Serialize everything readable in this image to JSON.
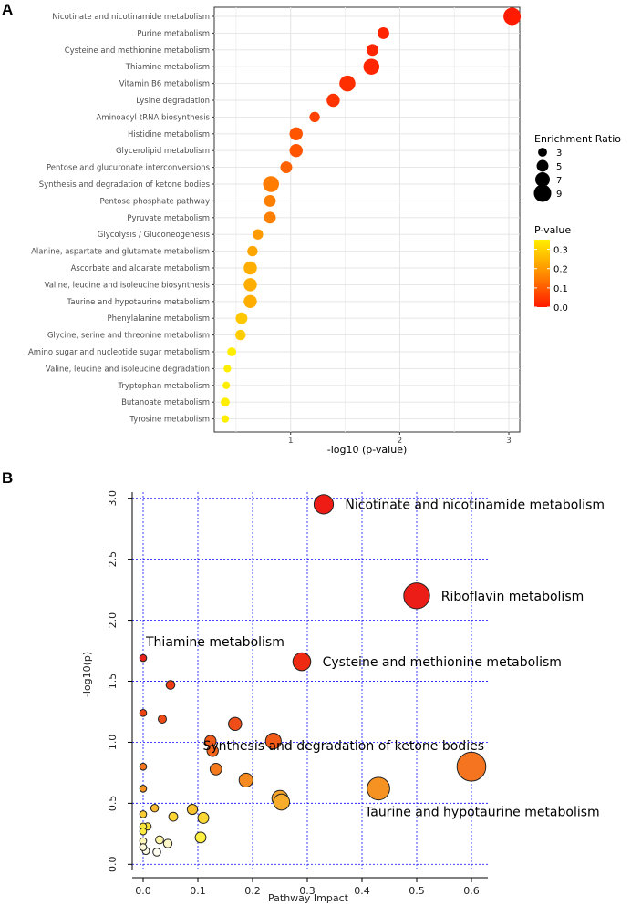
{
  "chart_data": [
    {
      "panel": "A",
      "type": "scatter",
      "title": "",
      "xlabel": "-log10 (p-value)",
      "ylabel": "",
      "xlim": [
        0.3,
        3.1
      ],
      "xticks": [
        1,
        2,
        3
      ],
      "grid": true,
      "categories": [
        "Nicotinate and nicotinamide metabolism",
        "Purine metabolism",
        "Cysteine and methionine metabolism",
        "Thiamine metabolism",
        "Vitamin B6 metabolism",
        "Lysine degradation",
        "Aminoacyl-tRNA biosynthesis",
        "Histidine metabolism",
        "Glycerolipid metabolism",
        "Pentose and glucuronate interconversions",
        "Synthesis and degradation of ketone bodies",
        "Pentose phosphate pathway",
        "Pyruvate metabolism",
        "Glycolysis / Gluconeogenesis",
        "Alanine, aspartate and glutamate metabolism",
        "Ascorbate and aldarate metabolism",
        "Valine, leucine and isoleucine biosynthesis",
        "Taurine and hypotaurine metabolism",
        "Phenylalanine metabolism",
        "Glycine, serine and threonine metabolism",
        "Amino sugar and nucleotide sugar metabolism",
        "Valine, leucine and isoleucine degradation",
        "Tryptophan metabolism",
        "Butanoate metabolism",
        "Tyrosine metabolism"
      ],
      "x": [
        3.03,
        1.85,
        1.75,
        1.74,
        1.52,
        1.39,
        1.22,
        1.05,
        1.05,
        0.96,
        0.82,
        0.81,
        0.81,
        0.7,
        0.65,
        0.63,
        0.63,
        0.63,
        0.55,
        0.54,
        0.46,
        0.42,
        0.41,
        0.4,
        0.4
      ],
      "enrichment_ratio": [
        9,
        5,
        5,
        8,
        8,
        6,
        4,
        6,
        6,
        5,
        8,
        5,
        5,
        4,
        4,
        6,
        6,
        6,
        5,
        4,
        3,
        2,
        2,
        3,
        2
      ],
      "p_value": [
        0.001,
        0.014,
        0.018,
        0.018,
        0.03,
        0.04,
        0.06,
        0.09,
        0.09,
        0.11,
        0.15,
        0.155,
        0.155,
        0.2,
        0.22,
        0.235,
        0.235,
        0.235,
        0.28,
        0.29,
        0.35,
        0.38,
        0.39,
        0.4,
        0.4
      ],
      "legend": {
        "size_title": "Enrichment Ratio",
        "size_values": [
          3,
          5,
          7,
          9
        ],
        "color_title": "P-value",
        "color_ticks": [
          0.3,
          0.2,
          0.1,
          0.0
        ],
        "color_tick_labels": [
          "0.3",
          "0.2",
          "0.1",
          "0.0"
        ],
        "color_range": [
          0.0,
          0.35
        ],
        "colors": {
          "low": "#ff1a00",
          "mid": "#ff8c00",
          "high": "#ffee00"
        },
        "placement": "right"
      }
    },
    {
      "panel": "B",
      "type": "scatter",
      "title": "",
      "xlabel": "Pathway Impact",
      "ylabel": "-log10(p)",
      "xlim": [
        -0.02,
        0.63
      ],
      "ylim": [
        -0.05,
        3.05
      ],
      "xticks": [
        0.0,
        0.1,
        0.2,
        0.3,
        0.4,
        0.5,
        0.6
      ],
      "xtick_labels": [
        "0.0",
        "0.1",
        "0.2",
        "0.3",
        "0.4",
        "0.5",
        "0.6"
      ],
      "yticks": [
        0.0,
        0.5,
        1.0,
        1.5,
        2.0,
        2.5,
        3.0
      ],
      "ytick_labels": [
        "0.0",
        "0.5",
        "1.0",
        "1.5",
        "2.0",
        "2.5",
        "3.0"
      ],
      "grid": true,
      "points": [
        {
          "x": 0.33,
          "y": 2.95,
          "size": 0.34,
          "color": "#ee1c14"
        },
        {
          "x": 0.5,
          "y": 2.2,
          "size": 0.52,
          "color": "#ec1c16"
        },
        {
          "x": 0.29,
          "y": 1.66,
          "size": 0.3,
          "color": "#ee2a12"
        },
        {
          "x": 0.0,
          "y": 1.69,
          "size": 0.0,
          "color": "#e8221a"
        },
        {
          "x": 0.05,
          "y": 1.47,
          "size": 0.05,
          "color": "#ee3c14"
        },
        {
          "x": 0.0,
          "y": 1.24,
          "size": 0.0,
          "color": "#ee4214"
        },
        {
          "x": 0.035,
          "y": 1.19,
          "size": 0.035,
          "color": "#ee4a16"
        },
        {
          "x": 0.168,
          "y": 1.15,
          "size": 0.17,
          "color": "#ef4e18"
        },
        {
          "x": 0.123,
          "y": 1.01,
          "size": 0.12,
          "color": "#f25a18"
        },
        {
          "x": 0.238,
          "y": 1.01,
          "size": 0.24,
          "color": "#f25a18"
        },
        {
          "x": 0.127,
          "y": 0.93,
          "size": 0.12,
          "color": "#f26418"
        },
        {
          "x": 0.0,
          "y": 0.8,
          "size": 0.0,
          "color": "#f47420"
        },
        {
          "x": 0.6,
          "y": 0.8,
          "size": 0.6,
          "color": "#f47420"
        },
        {
          "x": 0.133,
          "y": 0.78,
          "size": 0.13,
          "color": "#f47a1c"
        },
        {
          "x": 0.188,
          "y": 0.69,
          "size": 0.19,
          "color": "#f58a20"
        },
        {
          "x": 0.0,
          "y": 0.62,
          "size": 0.0,
          "color": "#f69222"
        },
        {
          "x": 0.43,
          "y": 0.62,
          "size": 0.43,
          "color": "#f69222"
        },
        {
          "x": 0.25,
          "y": 0.54,
          "size": 0.25,
          "color": "#f7a428"
        },
        {
          "x": 0.253,
          "y": 0.51,
          "size": 0.25,
          "color": "#f8ac2c"
        },
        {
          "x": 0.021,
          "y": 0.46,
          "size": 0.02,
          "color": "#f9b830"
        },
        {
          "x": 0.09,
          "y": 0.45,
          "size": 0.09,
          "color": "#fac22c"
        },
        {
          "x": 0.0,
          "y": 0.41,
          "size": 0.0,
          "color": "#fbcc34"
        },
        {
          "x": 0.055,
          "y": 0.39,
          "size": 0.055,
          "color": "#fcd434"
        },
        {
          "x": 0.11,
          "y": 0.38,
          "size": 0.11,
          "color": "#fcd834"
        },
        {
          "x": 0.0,
          "y": 0.31,
          "size": 0.0,
          "color": "#fde43a"
        },
        {
          "x": 0.008,
          "y": 0.31,
          "size": 0.01,
          "color": "#fde63c"
        },
        {
          "x": 0.0,
          "y": 0.27,
          "size": 0.0,
          "color": "#fdea40"
        },
        {
          "x": 0.105,
          "y": 0.22,
          "size": 0.105,
          "color": "#fdf040"
        },
        {
          "x": 0.03,
          "y": 0.2,
          "size": 0.03,
          "color": "#fef4a6"
        },
        {
          "x": 0.0,
          "y": 0.19,
          "size": 0.0,
          "color": "#fef6b8"
        },
        {
          "x": 0.045,
          "y": 0.17,
          "size": 0.045,
          "color": "#fef8c8"
        },
        {
          "x": 0.0,
          "y": 0.14,
          "size": 0.0,
          "color": "#fefad8"
        },
        {
          "x": 0.005,
          "y": 0.11,
          "size": 0.005,
          "color": "#fffce6"
        },
        {
          "x": 0.025,
          "y": 0.1,
          "size": 0.025,
          "color": "#fffdf0"
        }
      ],
      "annotations": [
        {
          "text": "Nicotinate and nicotinamide metabolism",
          "x": 0.33,
          "y": 2.95,
          "anchor": "right"
        },
        {
          "text": "Riboflavin metabolism",
          "x": 0.5,
          "y": 2.2,
          "anchor": "right"
        },
        {
          "text": "Thiamine metabolism",
          "x": 0.0,
          "y": 1.69,
          "anchor": "above-right"
        },
        {
          "text": "Cysteine and methionine metabolism",
          "x": 0.29,
          "y": 1.66,
          "anchor": "right"
        },
        {
          "text": "Synthesis and degradation of ketone bodies",
          "x": 0.6,
          "y": 0.8,
          "anchor": "above-left"
        },
        {
          "text": "Taurine and hypotaurine metabolism",
          "x": 0.43,
          "y": 0.62,
          "anchor": "below"
        }
      ]
    }
  ],
  "panels": {
    "a_label": "A",
    "b_label": "B"
  }
}
